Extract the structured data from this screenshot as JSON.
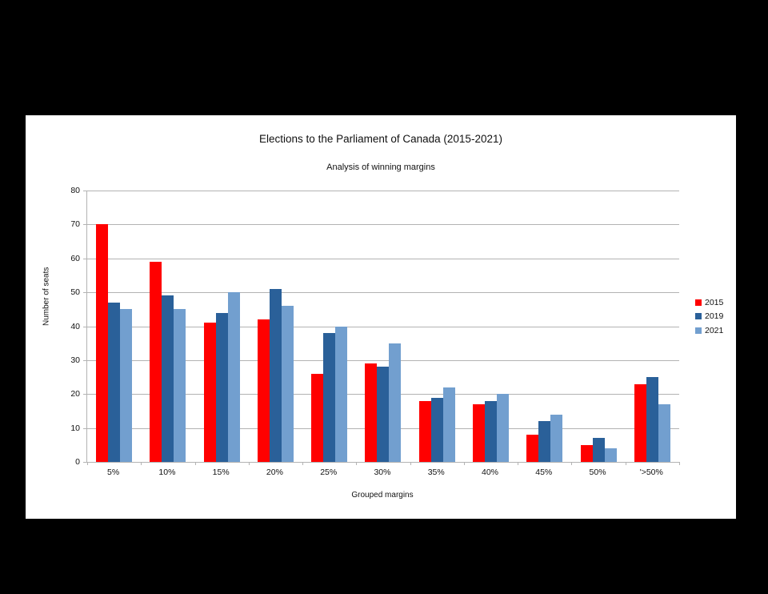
{
  "page": {
    "background_color": "#000000",
    "chart_background_color": "#ffffff",
    "gridline_color": "#b3b3b3",
    "axis_color": "#b3b3b3",
    "text_color": "#111111"
  },
  "chart_data": {
    "type": "bar",
    "title": "Elections to the Parliament of Canada (2015-2021)",
    "subtitle": "Analysis of winning margins",
    "xlabel": "Grouped margins",
    "ylabel": "Number of seats",
    "ylim": [
      0,
      80
    ],
    "ytick_step": 10,
    "yticks": [
      0,
      10,
      20,
      30,
      40,
      50,
      60,
      70,
      80
    ],
    "grid": true,
    "legend_position": "right",
    "categories": [
      "5%",
      "10%",
      "15%",
      "20%",
      "25%",
      "30%",
      "35%",
      "40%",
      "45%",
      "50%",
      "'>50%"
    ],
    "series": [
      {
        "name": "2015",
        "color": "#ff0000",
        "values": [
          70,
          59,
          41,
          42,
          26,
          29,
          18,
          17,
          8,
          5,
          23
        ]
      },
      {
        "name": "2019",
        "color": "#2a6099",
        "values": [
          47,
          49,
          44,
          51,
          38,
          28,
          19,
          18,
          12,
          7,
          25
        ]
      },
      {
        "name": "2021",
        "color": "#729fcf",
        "values": [
          45,
          45,
          50,
          46,
          40,
          35,
          22,
          20,
          14,
          4,
          17
        ]
      }
    ]
  }
}
